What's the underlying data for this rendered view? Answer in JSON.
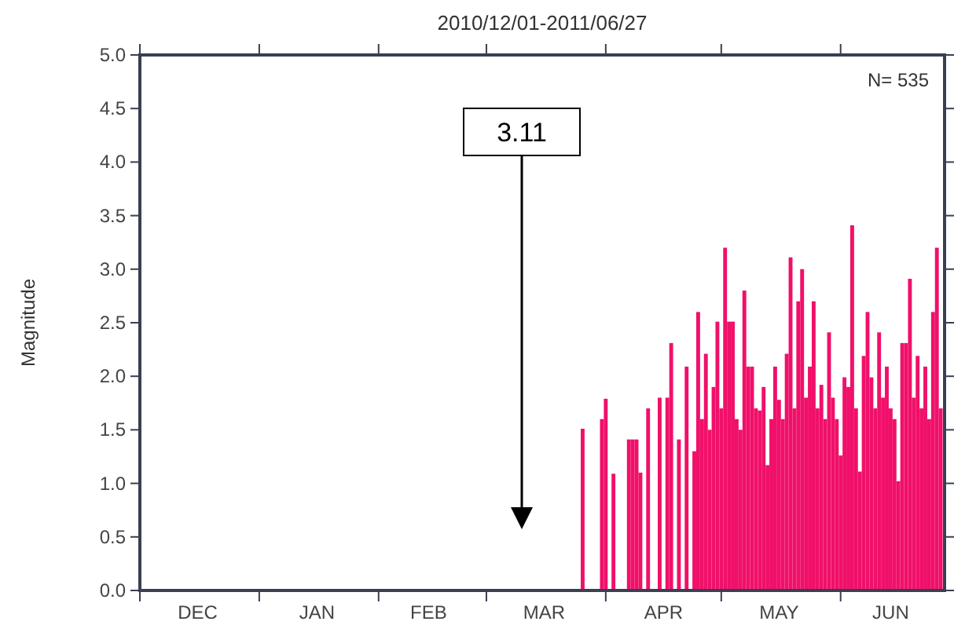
{
  "chart_data": {
    "type": "bar",
    "title": "2010/12/01-2011/06/27",
    "ylabel": "Magnitude",
    "x": [
      "2011-03-26",
      "2011-03-31",
      "2011-04-01",
      "2011-04-03",
      "2011-04-07",
      "2011-04-08",
      "2011-04-09",
      "2011-04-10",
      "2011-04-12",
      "2011-04-15",
      "2011-04-17",
      "2011-04-18",
      "2011-04-20",
      "2011-04-22",
      "2011-04-24",
      "2011-04-25",
      "2011-04-26",
      "2011-04-27",
      "2011-04-28",
      "2011-04-29",
      "2011-04-30",
      "2011-05-01",
      "2011-05-02",
      "2011-05-03",
      "2011-05-04",
      "2011-05-05",
      "2011-05-06",
      "2011-05-07",
      "2011-05-08",
      "2011-05-09",
      "2011-05-10",
      "2011-05-11",
      "2011-05-12",
      "2011-05-13",
      "2011-05-14",
      "2011-05-15",
      "2011-05-16",
      "2011-05-17",
      "2011-05-18",
      "2011-05-19",
      "2011-05-20",
      "2011-05-21",
      "2011-05-22",
      "2011-05-23",
      "2011-05-24",
      "2011-05-25",
      "2011-05-26",
      "2011-05-27",
      "2011-05-28",
      "2011-05-29",
      "2011-05-30",
      "2011-05-31",
      "2011-06-01",
      "2011-06-02",
      "2011-06-03",
      "2011-06-04",
      "2011-06-05",
      "2011-06-06",
      "2011-06-07",
      "2011-06-08",
      "2011-06-09",
      "2011-06-10",
      "2011-06-11",
      "2011-06-12",
      "2011-06-13",
      "2011-06-14",
      "2011-06-15",
      "2011-06-16",
      "2011-06-17",
      "2011-06-18",
      "2011-06-19",
      "2011-06-20",
      "2011-06-21",
      "2011-06-22",
      "2011-06-23",
      "2011-06-24",
      "2011-06-25",
      "2011-06-26",
      "2011-06-27"
    ],
    "values": [
      1.51,
      1.6,
      1.79,
      1.09,
      1.41,
      1.41,
      1.41,
      1.1,
      1.7,
      1.8,
      1.8,
      2.31,
      1.41,
      2.09,
      1.3,
      2.6,
      1.6,
      2.21,
      1.5,
      1.9,
      2.51,
      1.7,
      3.2,
      2.51,
      2.51,
      1.6,
      1.5,
      2.8,
      2.09,
      2.09,
      1.7,
      1.68,
      1.9,
      1.17,
      1.6,
      2.09,
      1.78,
      1.6,
      2.21,
      3.11,
      1.7,
      2.7,
      3.0,
      1.8,
      2.09,
      2.7,
      1.7,
      1.92,
      1.6,
      2.41,
      1.8,
      1.6,
      1.26,
      1.99,
      1.9,
      3.41,
      1.7,
      1.11,
      2.19,
      2.6,
      1.99,
      1.7,
      2.41,
      1.8,
      2.09,
      1.7,
      1.6,
      1.02,
      2.31,
      2.31,
      2.91,
      1.8,
      2.19,
      1.7,
      2.09,
      1.6,
      2.6,
      3.2,
      1.7
    ],
    "color": "#f0106a",
    "xlim": [
      "2010-12-01",
      "2011-06-28"
    ],
    "xticks": [
      {
        "value": "2010-12-01",
        "label": null
      },
      {
        "value": "2010-12-16",
        "label": "DEC"
      },
      {
        "value": "2011-01-01",
        "label": null
      },
      {
        "value": "2011-01-16",
        "label": "JAN"
      },
      {
        "value": "2011-02-01",
        "label": null
      },
      {
        "value": "2011-02-14",
        "label": "FEB"
      },
      {
        "value": "2011-03-01",
        "label": null
      },
      {
        "value": "2011-03-16",
        "label": "MAR"
      },
      {
        "value": "2011-04-01",
        "label": null
      },
      {
        "value": "2011-04-16",
        "label": "APR"
      },
      {
        "value": "2011-05-01",
        "label": null
      },
      {
        "value": "2011-05-16",
        "label": "MAY"
      },
      {
        "value": "2011-06-01",
        "label": null
      },
      {
        "value": "2011-06-14",
        "label": "JUN"
      }
    ],
    "ylim": [
      0,
      5
    ],
    "yticks": [
      {
        "value": 0,
        "label": "0.0"
      },
      {
        "value": 0.5,
        "label": "0.5"
      },
      {
        "value": 1,
        "label": "1.0"
      },
      {
        "value": 1.5,
        "label": "1.5"
      },
      {
        "value": 2,
        "label": "2.0"
      },
      {
        "value": 2.5,
        "label": "2.5"
      },
      {
        "value": 3,
        "label": "3.0"
      },
      {
        "value": 3.5,
        "label": "3.5"
      },
      {
        "value": 4,
        "label": "4.0"
      },
      {
        "value": 4.5,
        "label": "4.5"
      },
      {
        "value": 5,
        "label": "5.0"
      }
    ],
    "annotations": [
      "N= 535",
      "3.11"
    ]
  }
}
